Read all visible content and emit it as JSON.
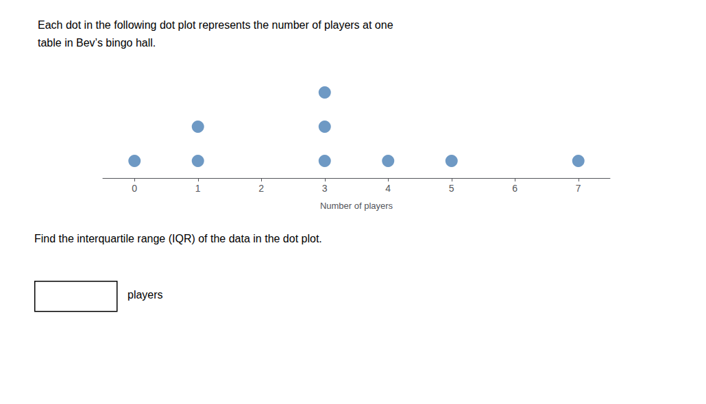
{
  "chart_data": {
    "type": "dot",
    "title": "Each dot in the following dot plot represents the number of players at one\ntable in Bev’s bingo hall.",
    "subtitle": "Find the interquartile range (IQR) of the data in the dot plot.",
    "xlabel": "Number of players",
    "annotation": "players",
    "x": [
      0,
      1,
      2,
      3,
      4,
      5,
      6,
      7
    ],
    "values": [
      1,
      2,
      0,
      3,
      1,
      1,
      0,
      1
    ],
    "color": "#4a7fb5",
    "xlim": [
      -0.5,
      7.5
    ],
    "xticks": [
      0,
      1,
      2,
      3,
      4,
      5,
      6,
      7
    ],
    "grid": false,
    "tick_labels": "x"
  }
}
